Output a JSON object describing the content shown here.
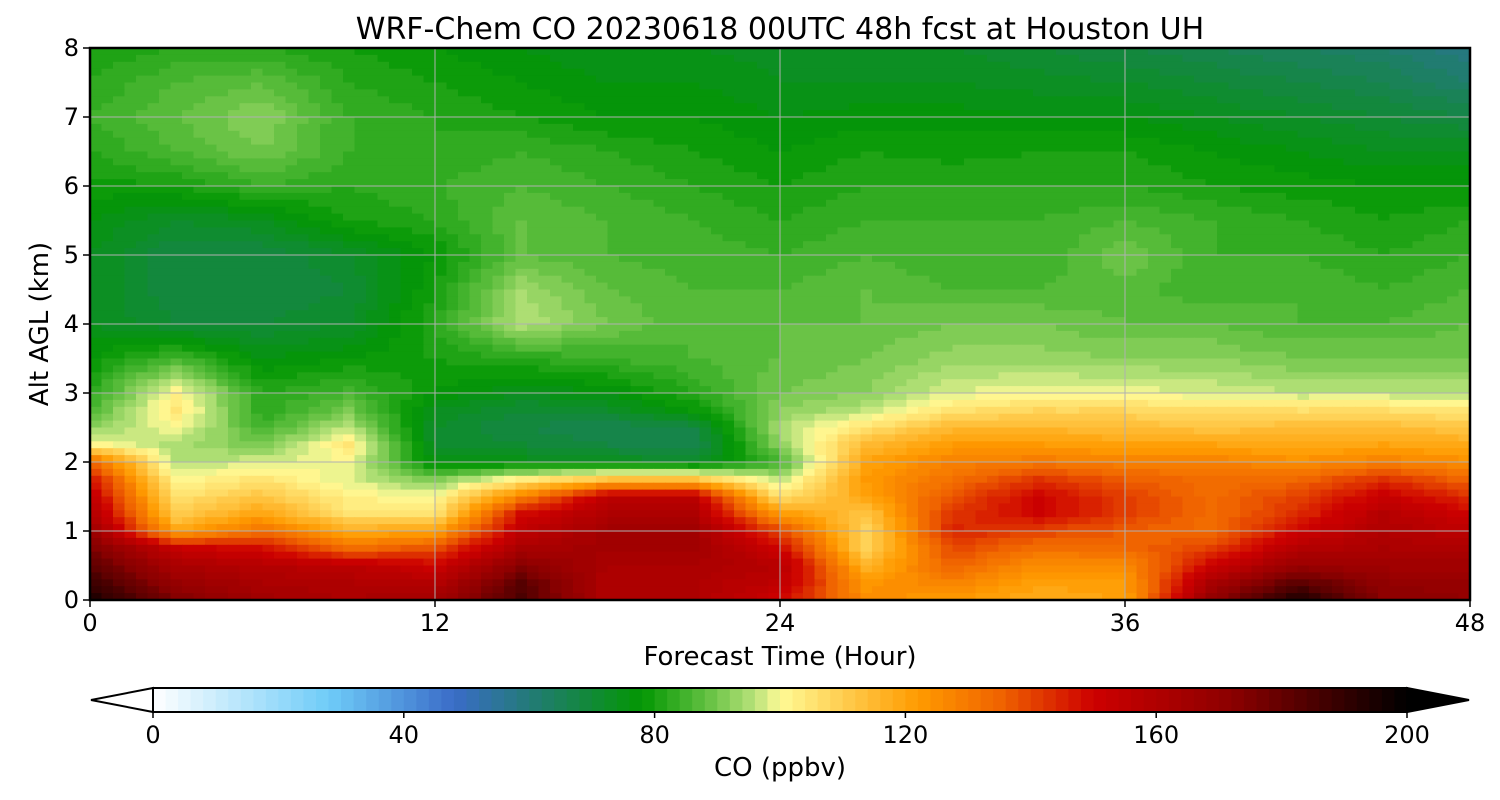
{
  "chart_data": {
    "type": "heatmap",
    "title": "WRF-Chem CO  20230618 00UTC 48h fcst at Houston UH",
    "xlabel": "Forecast Time (Hour)",
    "ylabel": "Alt AGL (km)",
    "xlim": [
      0,
      48
    ],
    "ylim": [
      0,
      8
    ],
    "x_ticks": [
      "0",
      "12",
      "24",
      "36",
      "48"
    ],
    "y_ticks": [
      "0",
      "1",
      "2",
      "3",
      "4",
      "5",
      "6",
      "7",
      "8"
    ],
    "grid": true,
    "x": [
      0,
      3,
      6,
      9,
      12,
      15,
      18,
      21,
      24,
      27,
      30,
      33,
      36,
      39,
      42,
      45,
      48
    ],
    "y": [
      0,
      0.25,
      0.5,
      0.75,
      1,
      1.25,
      1.5,
      1.75,
      2,
      2.25,
      2.5,
      2.75,
      3,
      3.5,
      4,
      4.5,
      5,
      5.5,
      6,
      6.5,
      7,
      7.5,
      8
    ],
    "z": [
      [
        195,
        175,
        165,
        162,
        165,
        185,
        160,
        160,
        150,
        125,
        122,
        118,
        120,
        170,
        195,
        172,
        170
      ],
      [
        188,
        168,
        162,
        160,
        158,
        182,
        160,
        160,
        155,
        123,
        128,
        120,
        122,
        162,
        182,
        170,
        168
      ],
      [
        182,
        162,
        158,
        156,
        150,
        172,
        162,
        162,
        158,
        116,
        135,
        125,
        126,
        150,
        168,
        165,
        165
      ],
      [
        175,
        152,
        148,
        132,
        138,
        162,
        165,
        165,
        150,
        108,
        140,
        132,
        134,
        140,
        158,
        162,
        160
      ],
      [
        168,
        120,
        132,
        118,
        120,
        155,
        165,
        165,
        140,
        108,
        145,
        140,
        136,
        133,
        150,
        160,
        155
      ],
      [
        160,
        110,
        120,
        105,
        105,
        148,
        160,
        160,
        122,
        112,
        142,
        150,
        141,
        133,
        143,
        158,
        150
      ],
      [
        155,
        105,
        112,
        102,
        100,
        128,
        155,
        155,
        105,
        120,
        138,
        150,
        141,
        133,
        140,
        152,
        143
      ],
      [
        148,
        100,
        105,
        98,
        90,
        102,
        112,
        112,
        95,
        122,
        132,
        142,
        136,
        133,
        134,
        143,
        134
      ],
      [
        135,
        95,
        98,
        100,
        75,
        75,
        74,
        72,
        85,
        120,
        128,
        130,
        128,
        128,
        125,
        128,
        125
      ],
      [
        102,
        95,
        90,
        104,
        72,
        70,
        68,
        66,
        92,
        115,
        122,
        122,
        120,
        120,
        118,
        120,
        118
      ],
      [
        92,
        100,
        85,
        96,
        72,
        68,
        66,
        68,
        95,
        105,
        115,
        115,
        114,
        112,
        114,
        114,
        112
      ],
      [
        86,
        104,
        82,
        90,
        74,
        70,
        72,
        78,
        92,
        96,
        105,
        108,
        108,
        106,
        106,
        106,
        104
      ],
      [
        82,
        102,
        82,
        85,
        78,
        74,
        76,
        82,
        90,
        92,
        98,
        100,
        99,
        98,
        96,
        96,
        96
      ],
      [
        78,
        85,
        76,
        78,
        80,
        82,
        84,
        86,
        88,
        90,
        93,
        93,
        92,
        92,
        90,
        90,
        90
      ],
      [
        74,
        70,
        70,
        72,
        82,
        96,
        90,
        86,
        88,
        88,
        90,
        90,
        88,
        88,
        86,
        86,
        88
      ],
      [
        74,
        68,
        68,
        70,
        80,
        94,
        88,
        86,
        86,
        88,
        86,
        86,
        87,
        84,
        86,
        84,
        86
      ],
      [
        74,
        68,
        68,
        72,
        78,
        88,
        86,
        85,
        84,
        86,
        84,
        84,
        90,
        84,
        84,
        82,
        84
      ],
      [
        76,
        72,
        74,
        80,
        82,
        88,
        86,
        84,
        82,
        84,
        84,
        84,
        86,
        84,
        82,
        80,
        82
      ],
      [
        79,
        80,
        84,
        82,
        84,
        86,
        84,
        82,
        80,
        82,
        82,
        82,
        82,
        80,
        79,
        78,
        78
      ],
      [
        82,
        86,
        90,
        84,
        82,
        84,
        82,
        80,
        78,
        80,
        79,
        80,
        80,
        78,
        76,
        74,
        74
      ],
      [
        84,
        88,
        92,
        84,
        82,
        80,
        78,
        78,
        76,
        77,
        77,
        76,
        76,
        74,
        72,
        70,
        68
      ],
      [
        82,
        86,
        88,
        82,
        80,
        78,
        76,
        76,
        74,
        74,
        74,
        73,
        72,
        70,
        68,
        66,
        62
      ],
      [
        80,
        82,
        82,
        80,
        78,
        76,
        74,
        74,
        73,
        72,
        72,
        70,
        68,
        66,
        64,
        62,
        58
      ]
    ],
    "colorbar": {
      "label": "CO  (ppbv)",
      "min": 0,
      "max": 200,
      "ticks": [
        "0",
        "40",
        "80",
        "120",
        "160",
        "200"
      ],
      "extend": "both",
      "levels": 100,
      "colors": [
        {
          "v": 0,
          "c": "#ffffff"
        },
        {
          "v": 28,
          "c": "#6fccf8"
        },
        {
          "v": 48,
          "c": "#3a6cc8"
        },
        {
          "v": 62,
          "c": "#1f7d6a"
        },
        {
          "v": 78,
          "c": "#039703"
        },
        {
          "v": 88,
          "c": "#5fbf3f"
        },
        {
          "v": 96,
          "c": "#b8e27a"
        },
        {
          "v": 100,
          "c": "#fffa96"
        },
        {
          "v": 110,
          "c": "#ffcd50"
        },
        {
          "v": 122,
          "c": "#ff9b00"
        },
        {
          "v": 135,
          "c": "#f06400"
        },
        {
          "v": 150,
          "c": "#cd0000"
        },
        {
          "v": 172,
          "c": "#8c0000"
        },
        {
          "v": 200,
          "c": "#000000"
        }
      ]
    }
  }
}
